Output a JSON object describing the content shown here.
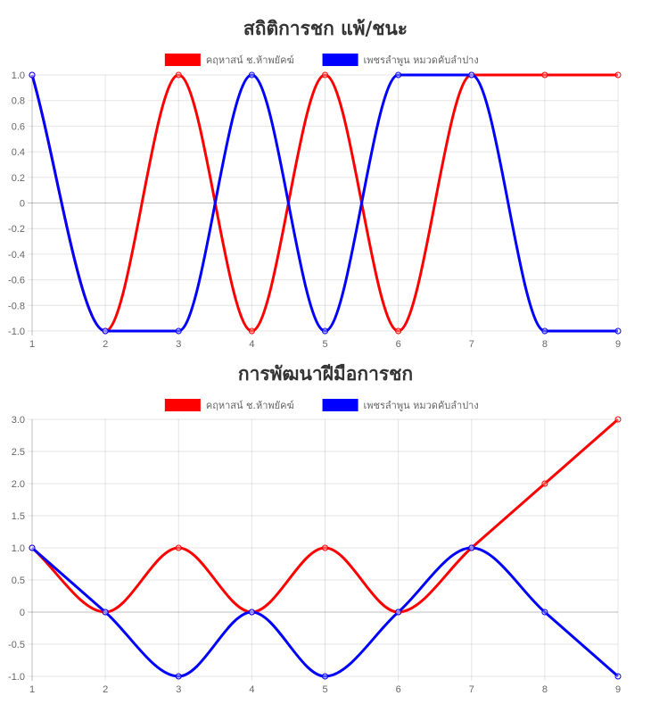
{
  "chart_data": [
    {
      "type": "line",
      "title": "สถิติการชก แพ้/ชนะ",
      "x": [
        1,
        2,
        3,
        4,
        5,
        6,
        7,
        8,
        9
      ],
      "ylim": [
        -1.0,
        1.0
      ],
      "yticks": [
        "1.0",
        "0.8",
        "0.6",
        "0.4",
        "0.2",
        "0",
        "-0.2",
        "-0.4",
        "-0.6",
        "-0.8",
        "-1.0"
      ],
      "grid": true,
      "legend_position": "top",
      "series": [
        {
          "name": "คฤหาสน์ ช.ห้าพยัคฆ์",
          "color": "#ff0000",
          "values": [
            1,
            -1,
            1,
            -1,
            1,
            -1,
            1,
            1,
            1
          ]
        },
        {
          "name": "เพชรลำพูน หมวดคับลำปาง",
          "color": "#0000ff",
          "values": [
            1,
            -1,
            -1,
            1,
            -1,
            1,
            1,
            -1,
            -1
          ]
        }
      ]
    },
    {
      "type": "line",
      "title": "การพัฒนาฝีมือการชก",
      "x": [
        1,
        2,
        3,
        4,
        5,
        6,
        7,
        8,
        9
      ],
      "ylim": [
        -1.0,
        3.0
      ],
      "yticks": [
        "3.0",
        "2.5",
        "2.0",
        "1.5",
        "1.0",
        "0.5",
        "0",
        "-0.5",
        "-1.0"
      ],
      "grid": true,
      "legend_position": "top",
      "series": [
        {
          "name": "คฤหาสน์ ช.ห้าพยัคฆ์",
          "color": "#ff0000",
          "values": [
            1,
            0,
            1,
            0,
            1,
            0,
            1,
            2,
            3
          ]
        },
        {
          "name": "เพชรลำพูน หมวดคับลำปาง",
          "color": "#0000ff",
          "values": [
            1,
            0,
            -1,
            0,
            -1,
            0,
            1,
            0,
            -1
          ]
        }
      ]
    }
  ]
}
